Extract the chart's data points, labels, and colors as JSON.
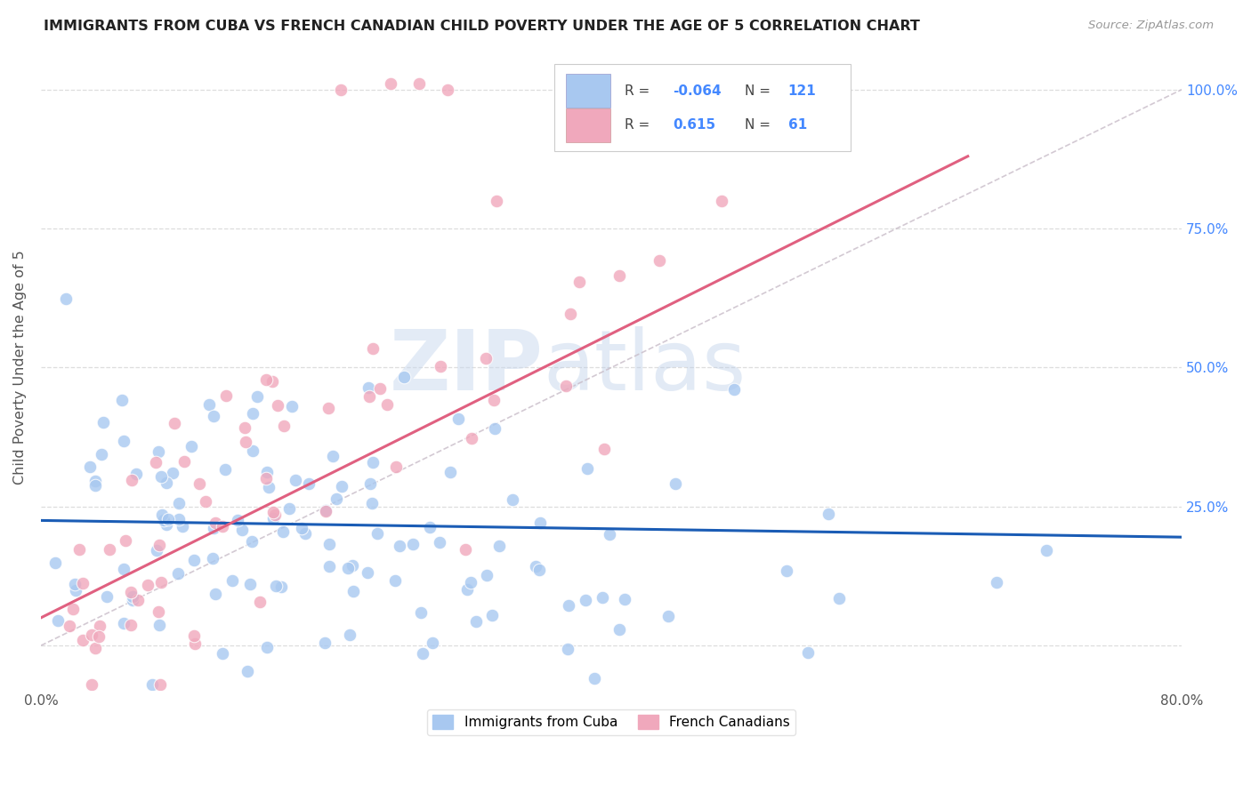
{
  "title": "IMMIGRANTS FROM CUBA VS FRENCH CANADIAN CHILD POVERTY UNDER THE AGE OF 5 CORRELATION CHART",
  "source": "Source: ZipAtlas.com",
  "ylabel": "Child Poverty Under the Age of 5",
  "legend_label1": "Immigrants from Cuba",
  "legend_label2": "French Canadians",
  "watermark_zip": "ZIP",
  "watermark_atlas": "atlas",
  "R1": "-0.064",
  "N1": "121",
  "R2": "0.615",
  "N2": "61",
  "color_blue": "#A8C8F0",
  "color_pink": "#F0A8BC",
  "color_line_blue": "#1A5CB5",
  "color_line_pink": "#E06080",
  "color_trend_dashed": "#C8BCC8",
  "xlim": [
    0.0,
    0.8
  ],
  "ylim": [
    -0.08,
    1.08
  ],
  "blue_line_x0": 0.0,
  "blue_line_y0": 0.225,
  "blue_line_x1": 0.8,
  "blue_line_y1": 0.195,
  "pink_line_x0": 0.0,
  "pink_line_y0": 0.05,
  "pink_line_x1": 0.65,
  "pink_line_y1": 0.88,
  "seed_blue": 42,
  "seed_pink": 99,
  "N_blue": 121,
  "N_pink": 61
}
